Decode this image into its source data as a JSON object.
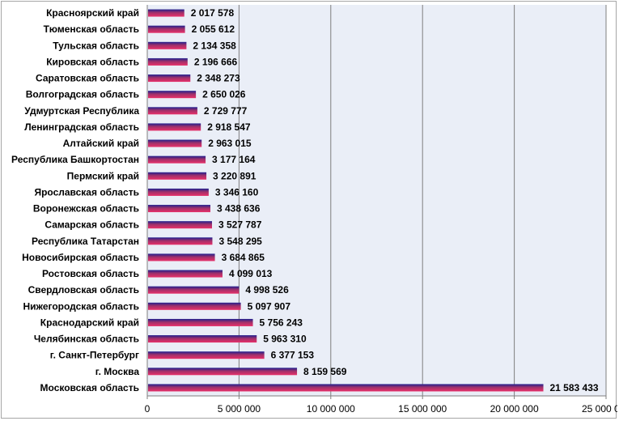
{
  "chart_data": {
    "type": "bar",
    "orientation": "horizontal",
    "categories": [
      "Красноярский край",
      "Тюменская область",
      "Тульская область",
      "Кировская область",
      "Саратовская область",
      "Волгоградская область",
      "Удмуртская Республика",
      "Ленинградская область",
      "Алтайский край",
      "Республика Башкортостан",
      "Пермский край",
      "Ярославская область",
      "Воронежская область",
      "Самарская область",
      "Республика Татарстан",
      "Новосибирская область",
      "Ростовская область",
      "Свердловская область",
      "Нижегородская область",
      "Краснодарский край",
      "Челябинская область",
      "г. Санкт-Петербург",
      "г. Москва",
      "Московская область"
    ],
    "values": [
      2017578,
      2055612,
      2134358,
      2196666,
      2348273,
      2650026,
      2729777,
      2918547,
      2963015,
      3177164,
      3220891,
      3346160,
      3438636,
      3527787,
      3548295,
      3684865,
      4099013,
      4998526,
      5097907,
      5756243,
      5963310,
      6377153,
      8159569,
      21583433
    ],
    "value_labels": [
      "2 017 578",
      "2 055 612",
      "2 134 358",
      "2 196 666",
      "2 348 273",
      "2 650 026",
      "2 729 777",
      "2 918 547",
      "2 963 015",
      "3 177 164",
      "3 220 891",
      "3 346 160",
      "3 438 636",
      "3 527 787",
      "3 548 295",
      "3 684 865",
      "4 099 013",
      "4 998 526",
      "5 097 907",
      "5 756 243",
      "5 963 310",
      "6 377 153",
      "8 159 569",
      "21 583 433"
    ],
    "xlim": [
      0,
      25000000
    ],
    "x_ticks": [
      0,
      5000000,
      10000000,
      15000000,
      20000000,
      25000000
    ],
    "x_tick_labels": [
      "0",
      "5 000 000",
      "10 000 000",
      "15 000 000",
      "20 000 000",
      "25 000 000"
    ],
    "title": "",
    "xlabel": "",
    "ylabel": "",
    "grid": true,
    "legend": "none",
    "colors": {
      "plot_background": "#eaeef7",
      "gridline": "#7f7f7f",
      "bar_top": "#1f1f8f",
      "bar_mid": "#a0306a",
      "bar_bottom": "#e8306a"
    }
  }
}
